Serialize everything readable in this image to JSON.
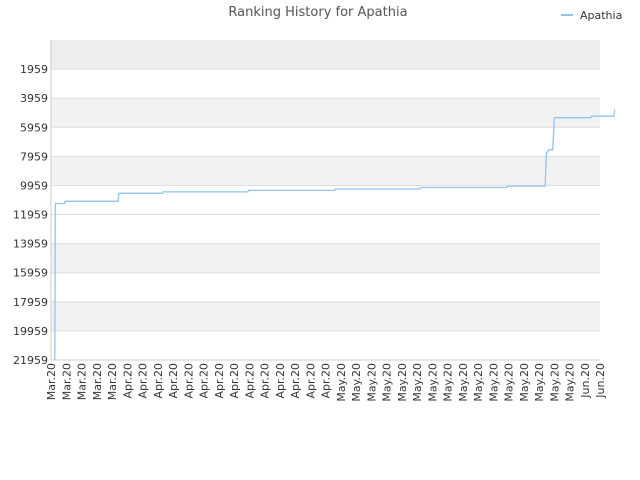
{
  "chart_data": {
    "type": "line",
    "title": "Ranking History for Apathia",
    "xlabel": "",
    "ylabel": "",
    "y_axis_inverted": true,
    "ylim": [
      21959,
      -41
    ],
    "yticks": [
      1959,
      3959,
      5959,
      7959,
      9959,
      11959,
      13959,
      15959,
      17959,
      19959,
      21959
    ],
    "xticks": [
      "Mar.20",
      "Mar.20",
      "Mar.20",
      "Mar.20",
      "Mar.20",
      "Apr.20",
      "Apr.20",
      "Apr.20",
      "Apr.20",
      "Apr.20",
      "Apr.20",
      "Apr.20",
      "Apr.20",
      "Apr.20",
      "Apr.20",
      "Apr.20",
      "Apr.20",
      "Apr.20",
      "Apr.20",
      "May.20",
      "May.20",
      "May.20",
      "May.20",
      "May.20",
      "May.20",
      "May.20",
      "May.20",
      "May.20",
      "May.20",
      "May.20",
      "May.20",
      "May.20",
      "May.20",
      "May.20",
      "May.20",
      "Jun.20",
      "Jun.20"
    ],
    "legend": {
      "position": "top-right"
    },
    "grid": true,
    "series": [
      {
        "name": "Apathia",
        "color": "#90c4f2",
        "x_index": [
          0.25,
          0.28,
          0.3,
          0.9,
          0.92,
          4.4,
          4.45,
          7.3,
          7.35,
          12.9,
          12.95,
          18.6,
          18.65,
          24.2,
          24.25,
          29.9,
          29.95,
          32.4,
          32.45,
          32.5,
          32.6,
          32.65,
          32.9,
          32.95,
          33.0,
          33.05,
          35.4,
          35.45,
          36.9,
          36.95,
          37
        ],
        "values": [
          21959,
          11400,
          11200,
          11200,
          11050,
          11050,
          10500,
          10500,
          10400,
          10400,
          10300,
          10300,
          10200,
          10200,
          10100,
          10100,
          10000,
          10000,
          8600,
          7700,
          7600,
          7500,
          7500,
          6500,
          5400,
          5300,
          5300,
          5200,
          5200,
          4800,
          4800
        ]
      }
    ]
  }
}
